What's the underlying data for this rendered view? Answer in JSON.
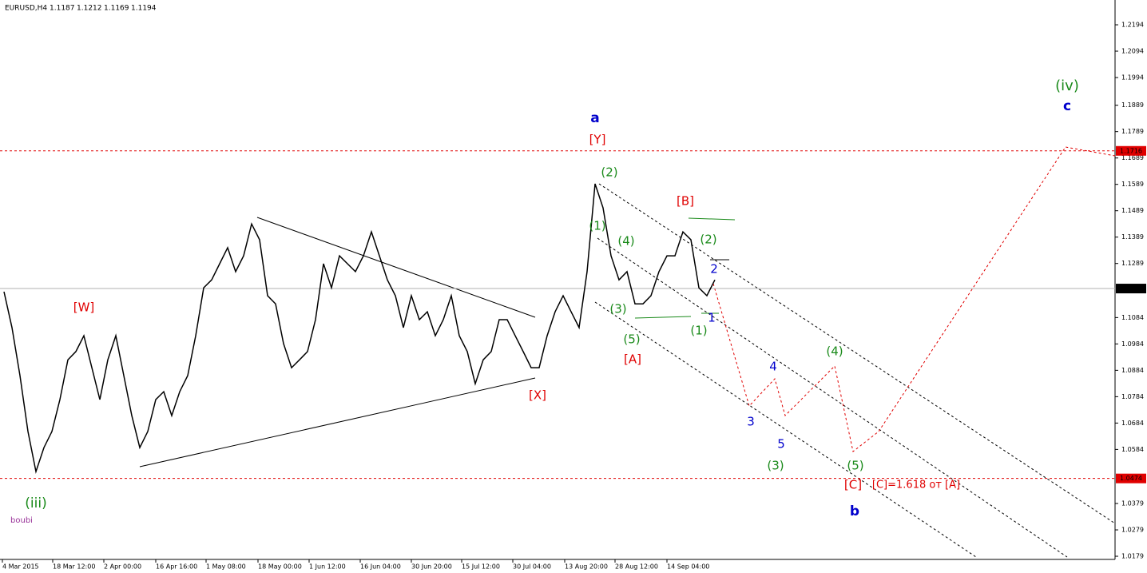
{
  "chart_data": {
    "type": "line",
    "symbol": "EURUSD,H4",
    "ohlc": [
      1.1187,
      1.1212,
      1.1169,
      1.1194
    ],
    "color": "#000000",
    "values": [
      1.1182,
      1.1046,
      1.0864,
      1.0652,
      1.05,
      1.0591,
      1.0652,
      1.0773,
      1.0924,
      1.0955,
      1.1015,
      1.0894,
      1.0773,
      1.0924,
      1.1015,
      1.0864,
      1.0712,
      1.0591,
      1.0652,
      1.0773,
      1.0803,
      1.0712,
      1.0803,
      1.0864,
      1.1015,
      1.1197,
      1.1227,
      1.1288,
      1.1349,
      1.1258,
      1.1318,
      1.1439,
      1.1379,
      1.1167,
      1.1136,
      1.0985,
      1.0894,
      1.0924,
      1.0955,
      1.1076,
      1.1288,
      1.1197,
      1.1318,
      1.1288,
      1.1258,
      1.1318,
      1.1409,
      1.1318,
      1.1227,
      1.1167,
      1.1046,
      1.1167,
      1.1076,
      1.1106,
      1.1015,
      1.1076,
      1.1167,
      1.1015,
      1.0955,
      1.0833,
      1.0924,
      1.0955,
      1.1076,
      1.1076,
      1.1015,
      1.0955,
      1.0894,
      1.0894,
      1.1015,
      1.1106,
      1.1167,
      1.1106,
      1.1046,
      1.1258,
      1.1591,
      1.15,
      1.1318,
      1.1227,
      1.1258,
      1.1136,
      1.1136,
      1.1167,
      1.1258,
      1.1318,
      1.1318,
      1.1409,
      1.1379,
      1.1197,
      1.1167,
      1.1227
    ],
    "x_labels": [
      "4 Mar 2015",
      "18 Mar 12:00",
      "2 Apr 00:00",
      "16 Apr 16:00",
      "1 May 08:00",
      "18 May 00:00",
      "1 Jun 12:00",
      "16 Jun 04:00",
      "30 Jun 20:00",
      "15 Jul 12:00",
      "30 Jul 04:00",
      "13 Aug 20:00",
      "28 Aug 12:00",
      "14 Sep 04:00"
    ],
    "ylim": [
      1.0167,
      1.2288
    ],
    "yticks": [
      1.2194,
      1.2094,
      1.1994,
      1.1889,
      1.1789,
      1.1689,
      1.1589,
      1.1489,
      1.1389,
      1.1289,
      1.1084,
      1.0984,
      1.0884,
      1.0784,
      1.0684,
      1.0584,
      1.0379,
      1.0279,
      1.0179
    ],
    "levels": [
      {
        "value": 1.1716,
        "color": "#e00000"
      },
      {
        "value": 1.1194,
        "color": "#000000"
      },
      {
        "value": 1.0474,
        "color": "#e00000"
      }
    ],
    "annotations": [
      {
        "text": "a",
        "color": "#0000cc"
      },
      {
        "text": "[Y]",
        "color": "#e00000"
      },
      {
        "text": "(2)",
        "color": "#1a8a1a"
      },
      {
        "text": "[B]",
        "color": "#e00000"
      },
      {
        "text": "(1)",
        "color": "#1a8a1a"
      },
      {
        "text": "(4)",
        "color": "#1a8a1a"
      },
      {
        "text": "(2)",
        "color": "#1a8a1a"
      },
      {
        "text": "2",
        "color": "#0000cc"
      },
      {
        "text": "(3)",
        "color": "#1a8a1a"
      },
      {
        "text": "1",
        "color": "#0000cc"
      },
      {
        "text": "(5)",
        "color": "#1a8a1a"
      },
      {
        "text": "(1)",
        "color": "#1a8a1a"
      },
      {
        "text": "[A]",
        "color": "#e00000"
      },
      {
        "text": "[W]",
        "color": "#e00000"
      },
      {
        "text": "[X]",
        "color": "#e00000"
      },
      {
        "text": "(iii)",
        "color": "#1a8a1a"
      },
      {
        "text": "boubi",
        "color": "#993399"
      },
      {
        "text": "(iv)",
        "color": "#1a8a1a"
      },
      {
        "text": "c",
        "color": "#0000cc"
      },
      {
        "text": "4",
        "color": "#0000cc"
      },
      {
        "text": "(4)",
        "color": "#1a8a1a"
      },
      {
        "text": "3",
        "color": "#0000cc"
      },
      {
        "text": "5",
        "color": "#0000cc"
      },
      {
        "text": "(3)",
        "color": "#1a8a1a"
      },
      {
        "text": "(5)",
        "color": "#1a8a1a"
      },
      {
        "text": "[C]",
        "color": "#e00000"
      },
      {
        "text": "[C]=1.618 от [A]",
        "color": "#e00000"
      },
      {
        "text": "b",
        "color": "#0000cc"
      }
    ]
  }
}
